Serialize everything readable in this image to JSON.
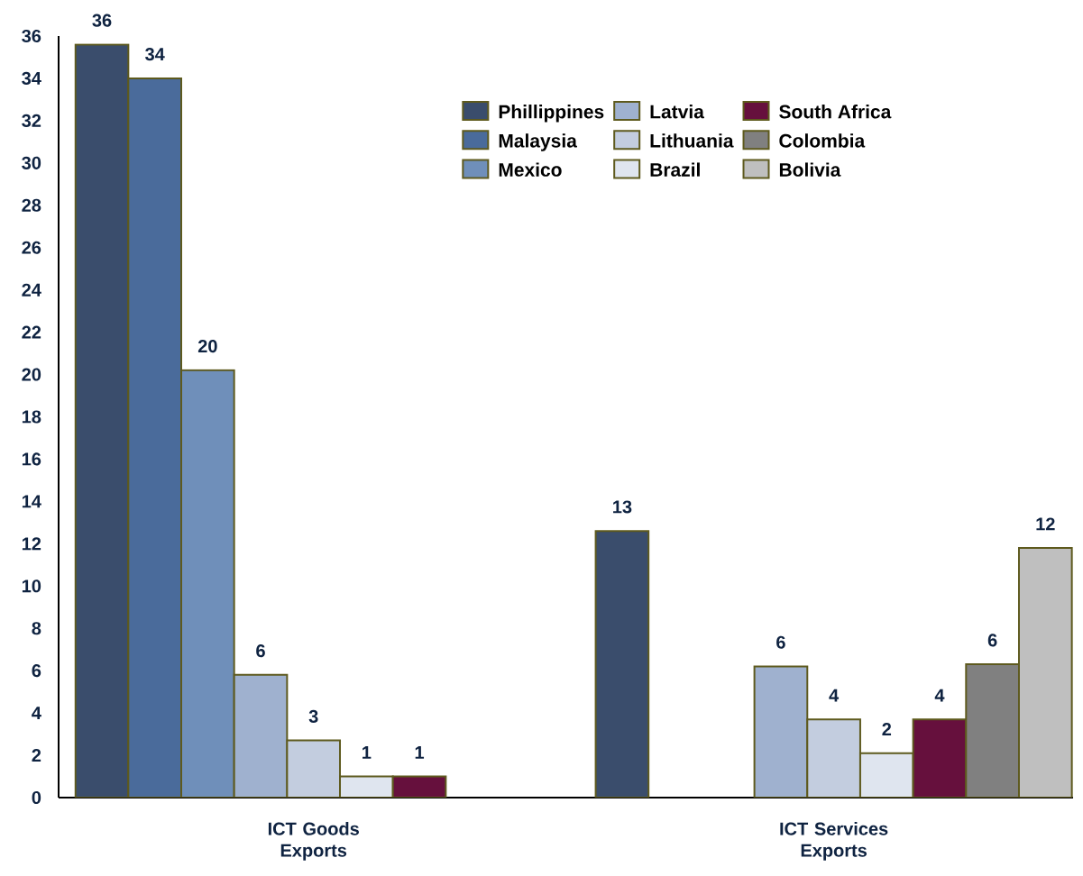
{
  "chart_data": {
    "type": "bar",
    "categories": [
      "ICT Goods Exports",
      "ICT Services Exports"
    ],
    "series": [
      {
        "name": "Phillippines",
        "color": "#3a4d6c",
        "values": [
          35.6,
          12.6
        ],
        "value_labels": [
          "36",
          "13"
        ]
      },
      {
        "name": "Malaysia",
        "color": "#4a6b9b",
        "values": [
          34.0,
          null
        ],
        "value_labels": [
          "34",
          null
        ]
      },
      {
        "name": "Mexico",
        "color": "#6f8fba",
        "values": [
          20.2,
          null
        ],
        "value_labels": [
          "20",
          null
        ]
      },
      {
        "name": "Latvia",
        "color": "#9fb1cf",
        "values": [
          5.8,
          6.2
        ],
        "value_labels": [
          "6",
          "6"
        ]
      },
      {
        "name": "Lithuania",
        "color": "#c3cddf",
        "values": [
          2.7,
          3.7
        ],
        "value_labels": [
          "3",
          "4"
        ]
      },
      {
        "name": "Brazil",
        "color": "#dfe5ef",
        "values": [
          1.0,
          2.1
        ],
        "value_labels": [
          "1",
          "2"
        ]
      },
      {
        "name": "South Africa",
        "color": "#66103d",
        "values": [
          1.0,
          3.7
        ],
        "value_labels": [
          "1",
          "4"
        ]
      },
      {
        "name": "Colombia",
        "color": "#808080",
        "values": [
          null,
          6.3
        ],
        "value_labels": [
          null,
          "6"
        ]
      },
      {
        "name": "Bolivia",
        "color": "#bfbfbf",
        "values": [
          null,
          11.8
        ],
        "value_labels": [
          null,
          "12"
        ]
      }
    ],
    "ylim": [
      0,
      36
    ],
    "yticks": [
      0,
      2,
      4,
      6,
      8,
      10,
      12,
      14,
      16,
      18,
      20,
      22,
      24,
      26,
      28,
      30,
      32,
      34,
      36
    ],
    "legend": "top right"
  }
}
